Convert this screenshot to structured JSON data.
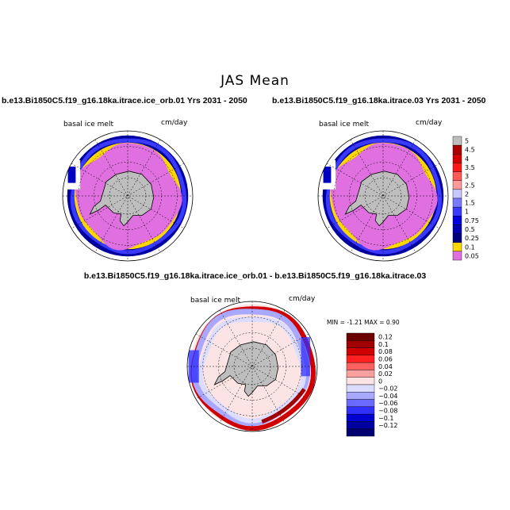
{
  "figure": {
    "title": "JAS Mean",
    "panel_left_title": "b.e13.Bi1850C5.f19_g16.18ka.itrace.ice_orb.01  Yrs 2031 - 2050",
    "panel_right_title": "b.e13.Bi1850C5.f19_g16.18ka.itrace.03  Yrs 2031 - 2050",
    "panel_diff_title": "b.e13.Bi1850C5.f19_g16.18ka.itrace.ice_orb.01 - b.e13.Bi1850C5.f19_g16.18ka.itrace.03",
    "variable_label": "basal ice melt",
    "units_label": "cm/day",
    "diff_stats": "MIN =   -1.21 MAX =    0.90"
  },
  "chart_data": [
    {
      "type": "heatmap",
      "projection": "south-polar-stereographic",
      "title": "b.e13.Bi1850C5.f19_g16.18ka.itrace.ice_orb.01  Yrs 2031 - 2050",
      "field": "basal ice melt",
      "units": "cm/day",
      "colorbar": {
        "labels": [
          "5",
          "4.5",
          "4",
          "3.5",
          "3",
          "2.5",
          "2",
          "1.5",
          "1",
          "0.75",
          "0.5",
          "0.25",
          "0.1",
          "0.05"
        ],
        "colors": [
          "#bebebe",
          "#aa0000",
          "#d40000",
          "#ff1a1a",
          "#ff5a5a",
          "#ff9a9a",
          "#c8c8ff",
          "#7a7aff",
          "#3a3aff",
          "#0000e0",
          "#0000b0",
          "#000080",
          "#ffd700",
          "#e070e0"
        ]
      }
    },
    {
      "type": "heatmap",
      "projection": "south-polar-stereographic",
      "title": "b.e13.Bi1850C5.f19_g16.18ka.itrace.03  Yrs 2031 - 2050",
      "field": "basal ice melt",
      "units": "cm/day",
      "colorbar": "shared with left panel"
    },
    {
      "type": "heatmap",
      "projection": "south-polar-stereographic",
      "title": "b.e13.Bi1850C5.f19_g16.18ka.itrace.ice_orb.01 - b.e13.Bi1850C5.f19_g16.18ka.itrace.03",
      "field": "basal ice melt",
      "units": "cm/day",
      "min": -1.21,
      "max": 0.9,
      "colorbar": {
        "labels": [
          "0.12",
          "0.1",
          "0.08",
          "0.06",
          "0.04",
          "0.02",
          "0",
          "−0.02",
          "−0.04",
          "−0.06",
          "−0.08",
          "−0.1",
          "−0.12"
        ],
        "colors": [
          "#6a0000",
          "#a00000",
          "#d00000",
          "#ff2020",
          "#ff6060",
          "#ffa0a0",
          "#fde4e4",
          "#dcdcff",
          "#a8a8ff",
          "#6a6aff",
          "#3030ff",
          "#0000d0",
          "#0000a0",
          "#000070"
        ]
      }
    }
  ]
}
